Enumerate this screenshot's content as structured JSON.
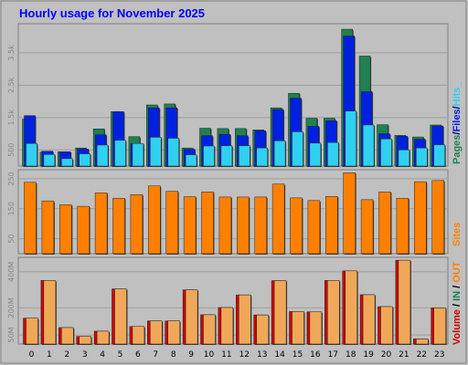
{
  "title": "Hourly usage for November 2025",
  "colors": {
    "background": "#c0c0c0",
    "panel": "#c0c0c0",
    "title": "#0000ff",
    "grid": "#a0a0a0",
    "pages": "#208050",
    "files": "#0020e0",
    "hits": "#30d0f0",
    "sites": "#ff8000",
    "volume": "#d00000",
    "in": "#e8a040",
    "out": "#f0a858"
  },
  "chart_data": [
    {
      "type": "bar",
      "title": "Hourly usage for November 2025",
      "categories": [
        "0",
        "1",
        "2",
        "3",
        "4",
        "5",
        "6",
        "7",
        "8",
        "9",
        "10",
        "11",
        "12",
        "13",
        "14",
        "15",
        "16",
        "17",
        "18",
        "19",
        "20",
        "21",
        "22",
        "23"
      ],
      "series": [
        {
          "name": "Pages",
          "values": [
            1450,
            430,
            440,
            560,
            1150,
            1680,
            910,
            1890,
            1920,
            560,
            1170,
            1160,
            1160,
            1120,
            1800,
            2250,
            1480,
            1480,
            4230,
            3400,
            1280,
            950,
            900,
            1270
          ]
        },
        {
          "name": "Files",
          "values": [
            1560,
            460,
            440,
            530,
            970,
            1680,
            690,
            1800,
            1800,
            520,
            940,
            980,
            940,
            1090,
            1750,
            2100,
            1230,
            1400,
            4020,
            2300,
            1000,
            920,
            830,
            1240
          ]
        },
        {
          "name": "Hits",
          "values": [
            700,
            360,
            230,
            380,
            650,
            800,
            700,
            890,
            860,
            350,
            620,
            630,
            630,
            560,
            780,
            1060,
            710,
            730,
            1700,
            1270,
            840,
            500,
            560,
            660
          ]
        }
      ],
      "legend": [
        "Pages",
        "Files",
        "Hits_"
      ],
      "legend_sep": "/",
      "yticks": [
        500,
        1500,
        2500,
        3500
      ],
      "ytick_labels": [
        "500",
        "1.5k",
        "2.5k",
        "3.5k"
      ],
      "ylim": [
        0,
        4400
      ],
      "grid": true
    },
    {
      "type": "bar",
      "categories": [
        "0",
        "1",
        "2",
        "3",
        "4",
        "5",
        "6",
        "7",
        "8",
        "9",
        "10",
        "11",
        "12",
        "13",
        "14",
        "15",
        "16",
        "17",
        "18",
        "19",
        "20",
        "21",
        "22",
        "23"
      ],
      "series": [
        {
          "name": "Sites",
          "values": [
            238,
            176,
            163,
            158,
            203,
            185,
            197,
            226,
            208,
            190,
            206,
            189,
            189,
            189,
            232,
            186,
            177,
            191,
            270,
            180,
            206,
            185,
            240,
            244
          ]
        }
      ],
      "legend": [
        "Sites"
      ],
      "yticks": [
        50,
        150,
        250
      ],
      "ylim": [
        0,
        280
      ],
      "grid": true
    },
    {
      "type": "bar",
      "categories": [
        "0",
        "1",
        "2",
        "3",
        "4",
        "5",
        "6",
        "7",
        "8",
        "9",
        "10",
        "11",
        "12",
        "13",
        "14",
        "15",
        "16",
        "17",
        "18",
        "19",
        "20",
        "21",
        "22",
        "23"
      ],
      "series": [
        {
          "name": "Volume",
          "values": [
            143,
            352,
            91,
            42,
            71,
            305,
            97,
            128,
            128,
            300,
            162,
            202,
            272,
            161,
            351,
            180,
            178,
            352,
            405,
            273,
            207,
            464,
            28,
            200
          ]
        }
      ],
      "legend": [
        "Volume",
        "IN",
        "OUT"
      ],
      "legend_sep": "/",
      "yticks": [
        50,
        200,
        400
      ],
      "ytick_labels": [
        "50M",
        "200M",
        "400M"
      ],
      "ylim": [
        0,
        480
      ],
      "grid": true
    }
  ]
}
